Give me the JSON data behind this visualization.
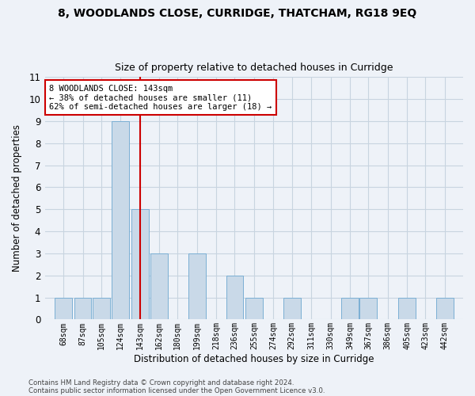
{
  "title": "8, WOODLANDS CLOSE, CURRIDGE, THATCHAM, RG18 9EQ",
  "subtitle": "Size of property relative to detached houses in Curridge",
  "xlabel": "Distribution of detached houses by size in Curridge",
  "ylabel": "Number of detached properties",
  "footer_line1": "Contains HM Land Registry data © Crown copyright and database right 2024.",
  "footer_line2": "Contains public sector information licensed under the Open Government Licence v3.0.",
  "annotation_line1": "8 WOODLANDS CLOSE: 143sqm",
  "annotation_line2": "← 38% of detached houses are smaller (11)",
  "annotation_line3": "62% of semi-detached houses are larger (18) →",
  "property_line_x": 143,
  "categories": [
    68,
    87,
    105,
    124,
    143,
    162,
    180,
    199,
    218,
    236,
    255,
    274,
    292,
    311,
    330,
    349,
    367,
    386,
    405,
    423,
    442
  ],
  "bar_heights": [
    1,
    1,
    1,
    9,
    5,
    3,
    0,
    3,
    0,
    2,
    1,
    0,
    1,
    0,
    0,
    1,
    1,
    0,
    1,
    0,
    1
  ],
  "bar_color": "#c9d9e8",
  "bar_edge_color": "#7bafd4",
  "vline_color": "#cc0000",
  "annotation_box_edge_color": "#cc0000",
  "annotation_box_face_color": "#ffffff",
  "grid_color": "#c8d4e0",
  "background_color": "#eef2f8",
  "ylim": [
    0,
    11
  ],
  "yticks": [
    0,
    1,
    2,
    3,
    4,
    5,
    6,
    7,
    8,
    9,
    10,
    11
  ],
  "bin_width": 18
}
